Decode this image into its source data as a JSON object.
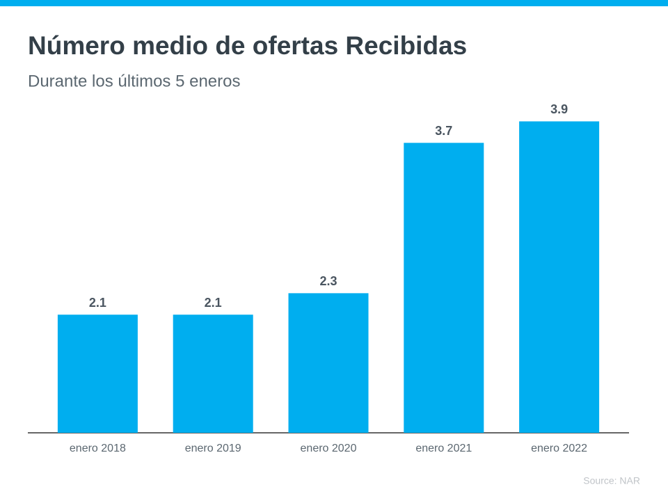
{
  "chart_data": {
    "type": "bar",
    "title": "Número medio de ofertas Recibidas",
    "subtitle": "Durante los últimos 5 eneros",
    "categories": [
      "enero 2018",
      "enero 2019",
      "enero 2020",
      "enero 2021",
      "enero 2022"
    ],
    "values": [
      2.1,
      2.1,
      2.3,
      3.7,
      3.9
    ],
    "color": "#00aeef",
    "ylim": [
      1,
      4
    ],
    "source": "Source: NAR"
  }
}
